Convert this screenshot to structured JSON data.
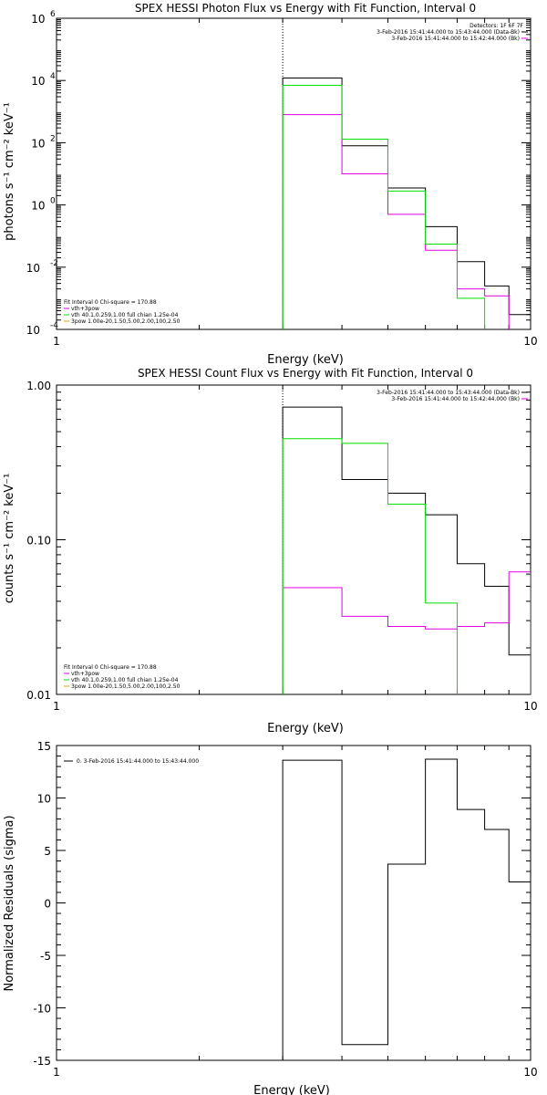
{
  "colors": {
    "black": "#000000",
    "green": "#00e000",
    "magenta": "#e000e0",
    "yellow": "#d6a800"
  },
  "chart_data": [
    {
      "id": "photon",
      "type": "line",
      "title": "SPEX HESSI Photon Flux vs Energy with Fit Function, Interval 0",
      "xlabel": "Energy (keV)",
      "ylabel": "photons s⁻¹ cm⁻² keV⁻¹",
      "xscale": "log",
      "yscale": "log",
      "xlim": [
        1,
        10
      ],
      "ylim": [
        0.0001,
        1000000
      ],
      "xticks": [
        {
          "value": 1,
          "label": "1"
        },
        {
          "value": 10,
          "label": "10"
        }
      ],
      "yticks": [
        {
          "value": 0.0001,
          "base": "10",
          "exp": "-4"
        },
        {
          "value": 0.01,
          "base": "10",
          "exp": "-2"
        },
        {
          "value": 1,
          "base": "10",
          "exp": "0"
        },
        {
          "value": 100,
          "base": "10",
          "exp": "2"
        },
        {
          "value": 10000,
          "base": "10",
          "exp": "4"
        },
        {
          "value": 1000000,
          "base": "10",
          "exp": "6"
        }
      ],
      "marker_energy": 3.0,
      "bin_edges": [
        3.0,
        4.0,
        5.0,
        6.0,
        7.0,
        8.0,
        9.0,
        10.0
      ],
      "series": [
        {
          "name": "3-Feb-2016 15:41:44.000 to 15:43:44.000 (Data-Bk)",
          "color": "#000000",
          "values": [
            12000,
            80,
            3.5,
            0.2,
            0.015,
            0.0025,
            0.0003
          ]
        },
        {
          "name": "3-Feb-2016 15:41:44.000 to 15:42:44.000 (Bk)",
          "color": "#e000e0",
          "values": [
            800,
            10,
            0.5,
            0.035,
            0.002,
            0.0012,
            0.0001
          ]
        },
        {
          "name": "vth+3pow",
          "color": "#00e000",
          "values": [
            7000,
            130,
            2.8,
            0.055,
            0.001,
            0.0001,
            null
          ]
        }
      ],
      "legend_top": {
        "header": "Detectors: 1F 6F 7F",
        "items": [
          {
            "text": "3-Feb-2016 15:41:44.000 to 15:43:44.000 (Data-Bk)",
            "color": "#000000"
          },
          {
            "text": "3-Feb-2016 15:41:44.000 to 15:42:44.000 (Bk)",
            "color": "#e000e0"
          }
        ]
      },
      "legend_bottom": {
        "header": "Fit Interval 0   Chi-square = 170.88",
        "items": [
          {
            "text": "vth+3pow",
            "color": "#e000e0"
          },
          {
            "text": "vth 40.1,0.259,1.00  full chian 1.25e-04",
            "color": "#00e000"
          },
          {
            "text": "3pow 1.00e-20,1.50,5.00,2.00,100,2.50",
            "color": "#d6a800"
          }
        ]
      }
    },
    {
      "id": "count",
      "type": "line",
      "title": "SPEX HESSI Count Flux vs Energy with Fit Function, Interval 0",
      "xlabel": "Energy (keV)",
      "ylabel": "counts s⁻¹ cm⁻² keV⁻¹",
      "xscale": "log",
      "yscale": "log",
      "xlim": [
        1,
        10
      ],
      "ylim": [
        0.01,
        1.0
      ],
      "xticks": [
        {
          "value": 1,
          "label": "1"
        },
        {
          "value": 10,
          "label": "10"
        }
      ],
      "yticks": [
        {
          "value": 0.01,
          "label": "0.01"
        },
        {
          "value": 0.1,
          "label": "0.10"
        },
        {
          "value": 1.0,
          "label": "1.00"
        }
      ],
      "marker_energy": 3.0,
      "bin_edges": [
        3.0,
        4.0,
        5.0,
        6.0,
        7.0,
        8.0,
        9.0,
        10.0
      ],
      "series": [
        {
          "name": "3-Feb-2016 15:41:44.000 to 15:43:44.000 (Data-Bk)",
          "color": "#000000",
          "values": [
            0.72,
            0.245,
            0.2,
            0.145,
            0.07,
            0.05,
            0.018
          ]
        },
        {
          "name": "3-Feb-2016 15:41:44.000 to 15:42:44.000 (Bk)",
          "color": "#e000e0",
          "values": [
            0.049,
            0.032,
            0.0275,
            0.0265,
            0.0275,
            0.029,
            0.062
          ]
        },
        {
          "name": "vth+3pow",
          "color": "#00e000",
          "values": [
            0.45,
            0.42,
            0.17,
            0.039,
            0.007,
            null,
            null
          ]
        }
      ],
      "legend_top": {
        "header": "",
        "items": [
          {
            "text": "3-Feb-2016 15:41:44.000 to 15:43:44.000 (Data-Bk)",
            "color": "#000000"
          },
          {
            "text": "3-Feb-2016 15:41:44.000 to 15:42:44.000 (Bk)",
            "color": "#e000e0"
          }
        ]
      },
      "legend_bottom": {
        "header": "Fit Interval 0   Chi-square = 170.88",
        "items": [
          {
            "text": "vth+3pow",
            "color": "#e000e0"
          },
          {
            "text": "vth 40.1,0.259,1.00  full chian 1.25e-04",
            "color": "#00e000"
          },
          {
            "text": "3pow 1.00e-20,1.50,5.00,2.00,100,2.50",
            "color": "#d6a800"
          }
        ]
      }
    },
    {
      "id": "residuals",
      "type": "line",
      "title": "",
      "xlabel": "Energy (keV)",
      "ylabel": "Normalized Residuals (sigma)",
      "xscale": "log",
      "yscale": "linear",
      "xlim": [
        1,
        10
      ],
      "ylim": [
        -15,
        15
      ],
      "xticks": [
        {
          "value": 1,
          "label": "1"
        },
        {
          "value": 10,
          "label": "10"
        }
      ],
      "yticks": [
        {
          "value": -15,
          "label": "-15"
        },
        {
          "value": -10,
          "label": "-10"
        },
        {
          "value": -5,
          "label": "-5"
        },
        {
          "value": 0,
          "label": "0"
        },
        {
          "value": 5,
          "label": "5"
        },
        {
          "value": 10,
          "label": "10"
        },
        {
          "value": 15,
          "label": "15"
        }
      ],
      "marker_energy": null,
      "bin_edges": [
        3.0,
        4.0,
        5.0,
        6.0,
        7.0,
        8.0,
        9.0,
        10.0
      ],
      "series": [
        {
          "name": "0.  3-Feb-2016 15:41:44.000 to 15:43:44.000",
          "color": "#000000",
          "values": [
            13.6,
            -13.5,
            3.7,
            13.7,
            8.9,
            7.0,
            2.0
          ]
        }
      ],
      "legend_inline": {
        "items": [
          {
            "text": "0.  3-Feb-2016 15:41:44.000 to 15:43:44.000",
            "color": "#000000"
          }
        ]
      }
    }
  ]
}
